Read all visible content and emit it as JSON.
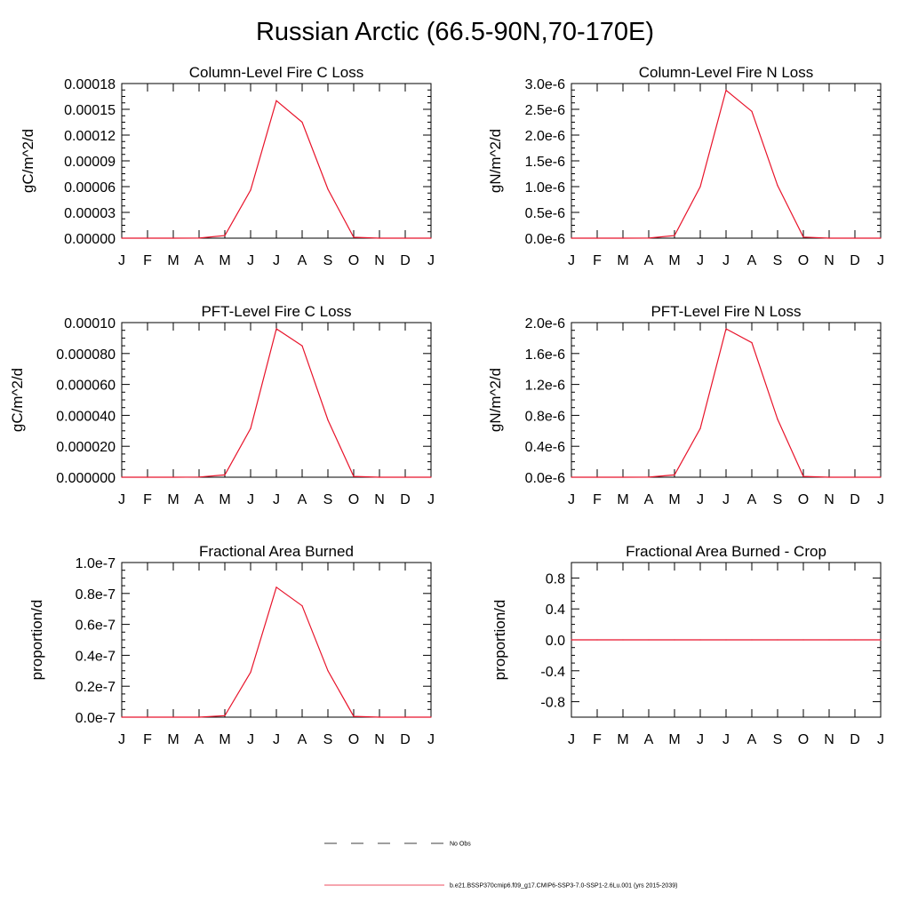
{
  "figure": {
    "title": "Russian Arctic (66.5-90N,70-170E)"
  },
  "chart_data": [
    {
      "type": "line",
      "title": "Column-Level Fire C Loss",
      "xlabel": "",
      "ylabel": "gC/m^2/d",
      "categories": [
        "J",
        "F",
        "M",
        "A",
        "M",
        "J",
        "J",
        "A",
        "S",
        "O",
        "N",
        "D",
        "J"
      ],
      "ylim": [
        0,
        0.00018
      ],
      "yticks": [
        0,
        3e-05,
        6e-05,
        9e-05,
        0.00012,
        0.00015,
        0.00018
      ],
      "ytick_labels": [
        "0.00000",
        "0.00003",
        "0.00006",
        "0.00009",
        "0.00012",
        "0.00015",
        "0.00018"
      ],
      "grid": false,
      "series": [
        {
          "color": "#e8132a",
          "values": [
            0,
            0,
            0,
            1e-07,
            3e-06,
            5.6e-05,
            0.00016,
            0.000135,
            5.7e-05,
            1e-06,
            0,
            0,
            0
          ]
        }
      ]
    },
    {
      "type": "line",
      "title": "Column-Level Fire N Loss",
      "xlabel": "",
      "ylabel": "gN/m^2/d",
      "categories": [
        "J",
        "F",
        "M",
        "A",
        "M",
        "J",
        "J",
        "A",
        "S",
        "O",
        "N",
        "D",
        "J"
      ],
      "ylim": [
        0,
        3e-06
      ],
      "yticks": [
        0,
        5e-07,
        1e-06,
        1.5e-06,
        2e-06,
        2.5e-06,
        3e-06
      ],
      "ytick_labels": [
        "0.0e-6",
        "0.5e-6",
        "1.0e-6",
        "1.5e-6",
        "2.0e-6",
        "2.5e-6",
        "3.0e-6"
      ],
      "grid": false,
      "series": [
        {
          "color": "#e8132a",
          "values": [
            0,
            0,
            0,
            2e-09,
            5e-08,
            1e-06,
            2.87e-06,
            2.46e-06,
            1.02e-06,
            2e-08,
            0,
            0,
            0
          ]
        }
      ]
    },
    {
      "type": "line",
      "title": "PFT-Level Fire C Loss",
      "xlabel": "",
      "ylabel": "gC/m^2/d",
      "categories": [
        "J",
        "F",
        "M",
        "A",
        "M",
        "J",
        "J",
        "A",
        "S",
        "O",
        "N",
        "D",
        "J"
      ],
      "ylim": [
        0,
        0.0001
      ],
      "yticks": [
        0,
        2e-05,
        4e-05,
        6e-05,
        8e-05,
        0.0001
      ],
      "ytick_labels": [
        "0.000000",
        "0.000020",
        "0.000040",
        "0.000060",
        "0.000080",
        "0.00010"
      ],
      "grid": false,
      "series": [
        {
          "color": "#e8132a",
          "values": [
            0,
            0,
            0,
            1e-07,
            1.5e-06,
            3.15e-05,
            9.6e-05,
            8.5e-05,
            3.7e-05,
            5e-07,
            0,
            0,
            0
          ]
        }
      ]
    },
    {
      "type": "line",
      "title": "PFT-Level Fire N Loss",
      "xlabel": "",
      "ylabel": "gN/m^2/d",
      "categories": [
        "J",
        "F",
        "M",
        "A",
        "M",
        "J",
        "J",
        "A",
        "S",
        "O",
        "N",
        "D",
        "J"
      ],
      "ylim": [
        0,
        2e-06
      ],
      "yticks": [
        0,
        4e-07,
        8e-07,
        1.2e-06,
        1.6e-06,
        2e-06
      ],
      "ytick_labels": [
        "0.0e-6",
        "0.4e-6",
        "0.8e-6",
        "1.2e-6",
        "1.6e-6",
        "2.0e-6"
      ],
      "grid": false,
      "series": [
        {
          "color": "#e8132a",
          "values": [
            0,
            0,
            0,
            1e-09,
            3e-08,
            6.3e-07,
            1.92e-06,
            1.74e-06,
            7.5e-07,
            1e-08,
            0,
            0,
            0
          ]
        }
      ]
    },
    {
      "type": "line",
      "title": "Fractional Area Burned",
      "xlabel": "",
      "ylabel": "proportion/d",
      "categories": [
        "J",
        "F",
        "M",
        "A",
        "M",
        "J",
        "J",
        "A",
        "S",
        "O",
        "N",
        "D",
        "J"
      ],
      "ylim": [
        0,
        1e-07
      ],
      "yticks": [
        0,
        2e-08,
        4e-08,
        6e-08,
        8e-08,
        1e-07
      ],
      "ytick_labels": [
        "0.0e-7",
        "0.2e-7",
        "0.4e-7",
        "0.6e-7",
        "0.8e-7",
        "1.0e-7"
      ],
      "grid": false,
      "series": [
        {
          "color": "#e8132a",
          "values": [
            0,
            0,
            0,
            2e-11,
            1e-09,
            2.9e-08,
            8.4e-08,
            7.2e-08,
            3e-08,
            5e-10,
            0,
            0,
            0
          ]
        }
      ]
    },
    {
      "type": "line",
      "title": "Fractional Area Burned - Crop",
      "xlabel": "",
      "ylabel": "proportion/d",
      "categories": [
        "J",
        "F",
        "M",
        "A",
        "M",
        "J",
        "J",
        "A",
        "S",
        "O",
        "N",
        "D",
        "J"
      ],
      "ylim": [
        -1.0,
        1.0
      ],
      "yticks": [
        -0.8,
        -0.4,
        0,
        0.4,
        0.8
      ],
      "ytick_labels": [
        "-0.8",
        "-0.4",
        "0.0",
        "0.4",
        "0.8"
      ],
      "grid": false,
      "series": [
        {
          "color": "#e8132a",
          "values": [
            0,
            0,
            0,
            0,
            0,
            0,
            0,
            0,
            0,
            0,
            0,
            0,
            0
          ]
        }
      ]
    }
  ],
  "legend": {
    "placement": "bottom",
    "entries": [
      {
        "label": "No Obs",
        "style": "dashed",
        "color": "#000000"
      },
      {
        "label": "b.e21.BSSP370cmip6.f09_g17.CMIP6-SSP3-7.0-SSP1-2.6Lu.001 (yrs 2015-2039)",
        "style": "solid",
        "color": "#e8132a"
      }
    ]
  }
}
